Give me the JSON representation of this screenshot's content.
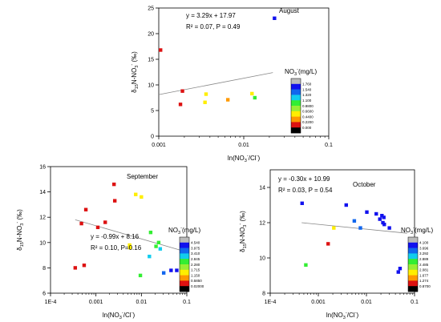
{
  "chart_data": [
    {
      "type": "scatter",
      "title": "August",
      "xlabel": "ln(NO3-/Cl-)",
      "ylabel": "δ15N-NO3- (‰)",
      "x_scale": "log",
      "xlim": [
        0.001,
        0.1
      ],
      "ylim": [
        0,
        25
      ],
      "x_ticks": [
        "0.001",
        "0.01",
        "0.1"
      ],
      "y_ticks": [
        "0",
        "5",
        "10",
        "15",
        "20",
        "25"
      ],
      "grid": false,
      "equation": "y = 3.29x + 17.97",
      "stats": "R² = 0.07, P = 0.49",
      "fit_line": {
        "x_start": 0.001,
        "y_start": 8.1,
        "x_end": 0.022,
        "y_end": 12.4
      },
      "legend": {
        "title": "NO3-(mg/L)",
        "placement": "right",
        "labels": [
          "1.760",
          "1.540",
          "1.320",
          "1.100",
          "0.8800",
          "0.6600",
          "0.4400",
          "0.2200",
          "0.000"
        ]
      },
      "points": [
        {
          "x": 0.00105,
          "y": 16.8,
          "color": "#dd1111"
        },
        {
          "x": 0.0018,
          "y": 6.2,
          "color": "#dd1111"
        },
        {
          "x": 0.0019,
          "y": 8.8,
          "color": "#dd1111"
        },
        {
          "x": 0.0035,
          "y": 6.6,
          "color": "#ffee00"
        },
        {
          "x": 0.0036,
          "y": 8.2,
          "color": "#ffee00"
        },
        {
          "x": 0.0065,
          "y": 7.1,
          "color": "#ff9900"
        },
        {
          "x": 0.0125,
          "y": 8.3,
          "color": "#ffee00"
        },
        {
          "x": 0.0135,
          "y": 7.5,
          "color": "#33ee33"
        },
        {
          "x": 0.023,
          "y": 23.0,
          "color": "#1111ee"
        }
      ]
    },
    {
      "type": "scatter",
      "title": "September",
      "xlabel": "ln(NO3-/Cl-)",
      "ylabel": "δ15N-NO3- (‰)",
      "x_scale": "log",
      "xlim": [
        0.0001,
        0.1
      ],
      "ylim": [
        6,
        16
      ],
      "x_ticks": [
        "1E-4",
        "0.001",
        "0.01",
        "0.1"
      ],
      "y_ticks": [
        "6",
        "8",
        "10",
        "12",
        "14",
        "16"
      ],
      "grid": false,
      "equation": "y = -0.99x + 8.16",
      "stats": "R² = 0.10, P=0.16",
      "fit_line": {
        "x_start": 0.00035,
        "y_start": 11.8,
        "x_end": 0.09,
        "y_end": 9.3
      },
      "legend": {
        "title": "NO3-(mg/L)",
        "placement": "right",
        "labels": [
          "4.540",
          "3.975",
          "3.410",
          "2.845",
          "2.280",
          "1.715",
          "1.150",
          "0.5850",
          "0.02000"
        ]
      },
      "points": [
        {
          "x": 0.00035,
          "y": 8.0,
          "color": "#dd1111"
        },
        {
          "x": 0.00048,
          "y": 11.5,
          "color": "#dd1111"
        },
        {
          "x": 0.00055,
          "y": 8.2,
          "color": "#dd1111"
        },
        {
          "x": 0.0006,
          "y": 12.6,
          "color": "#dd1111"
        },
        {
          "x": 0.0011,
          "y": 11.2,
          "color": "#dd1111"
        },
        {
          "x": 0.0016,
          "y": 11.6,
          "color": "#dd1111"
        },
        {
          "x": 0.0025,
          "y": 14.6,
          "color": "#dd1111"
        },
        {
          "x": 0.0026,
          "y": 13.3,
          "color": "#dd1111"
        },
        {
          "x": 0.0055,
          "y": 9.8,
          "color": "#ffee00"
        },
        {
          "x": 0.0056,
          "y": 9.6,
          "color": "#ffee00"
        },
        {
          "x": 0.0075,
          "y": 13.8,
          "color": "#ffee00"
        },
        {
          "x": 0.01,
          "y": 13.6,
          "color": "#ffee00"
        },
        {
          "x": 0.0095,
          "y": 7.4,
          "color": "#33ee33"
        },
        {
          "x": 0.016,
          "y": 10.8,
          "color": "#33ee33"
        },
        {
          "x": 0.015,
          "y": 8.9,
          "color": "#11ccee"
        },
        {
          "x": 0.021,
          "y": 9.7,
          "color": "#33ee33"
        },
        {
          "x": 0.024,
          "y": 10.0,
          "color": "#33ee33"
        },
        {
          "x": 0.026,
          "y": 9.5,
          "color": "#11ccee"
        },
        {
          "x": 0.031,
          "y": 7.6,
          "color": "#1166ee"
        },
        {
          "x": 0.045,
          "y": 7.8,
          "color": "#1111ee"
        },
        {
          "x": 0.06,
          "y": 7.8,
          "color": "#1111ee"
        }
      ]
    },
    {
      "type": "scatter",
      "title": "October",
      "xlabel": "ln(NO3-/Cl-)",
      "ylabel": "δ15N-NO3- (‰)",
      "x_scale": "log",
      "xlim": [
        0.0001,
        0.1
      ],
      "ylim": [
        8,
        15
      ],
      "x_ticks": [
        "1E-4",
        "0.001",
        "0.01",
        "0.1"
      ],
      "y_ticks": [
        "8",
        "10",
        "12",
        "14"
      ],
      "grid": false,
      "equation": "y = -0.30x + 10.99",
      "stats": "R² = 0.03, P = 0.54",
      "fit_line": {
        "x_start": 0.00045,
        "y_start": 12.0,
        "x_end": 0.07,
        "y_end": 11.4
      },
      "legend": {
        "title": "NO3-(mg/L)",
        "placement": "right",
        "labels": [
          "4.100",
          "3.696",
          "3.292",
          "2.889",
          "2.485",
          "2.081",
          "1.677",
          "1.274",
          "0.8700"
        ]
      },
      "points": [
        {
          "x": 0.00046,
          "y": 13.1,
          "color": "#1111ee"
        },
        {
          "x": 0.00055,
          "y": 9.6,
          "color": "#33ee33"
        },
        {
          "x": 0.0016,
          "y": 10.8,
          "color": "#dd1111"
        },
        {
          "x": 0.0021,
          "y": 11.7,
          "color": "#ffee00"
        },
        {
          "x": 0.0038,
          "y": 13.0,
          "color": "#1111ee"
        },
        {
          "x": 0.0056,
          "y": 12.1,
          "color": "#1166ee"
        },
        {
          "x": 0.0075,
          "y": 11.7,
          "color": "#1166ee"
        },
        {
          "x": 0.0102,
          "y": 12.6,
          "color": "#1111ee"
        },
        {
          "x": 0.016,
          "y": 12.5,
          "color": "#1111ee"
        },
        {
          "x": 0.019,
          "y": 12.2,
          "color": "#1111ee"
        },
        {
          "x": 0.021,
          "y": 12.4,
          "color": "#1111ee"
        },
        {
          "x": 0.022,
          "y": 12.0,
          "color": "#1111ee"
        },
        {
          "x": 0.023,
          "y": 12.3,
          "color": "#1111ee"
        },
        {
          "x": 0.0235,
          "y": 11.9,
          "color": "#1111ee"
        },
        {
          "x": 0.03,
          "y": 11.7,
          "color": "#1111ee"
        },
        {
          "x": 0.046,
          "y": 9.2,
          "color": "#1111ee"
        },
        {
          "x": 0.05,
          "y": 9.4,
          "color": "#1111ee"
        }
      ]
    }
  ],
  "colors": {
    "scale": [
      "#bbbbbb",
      "#1111ee",
      "#1166ee",
      "#11ccee",
      "#33ee33",
      "#99ee33",
      "#ffee00",
      "#ff9900",
      "#dd1111",
      "#000000"
    ],
    "axis": "#000000",
    "fit_line": "#888888"
  }
}
